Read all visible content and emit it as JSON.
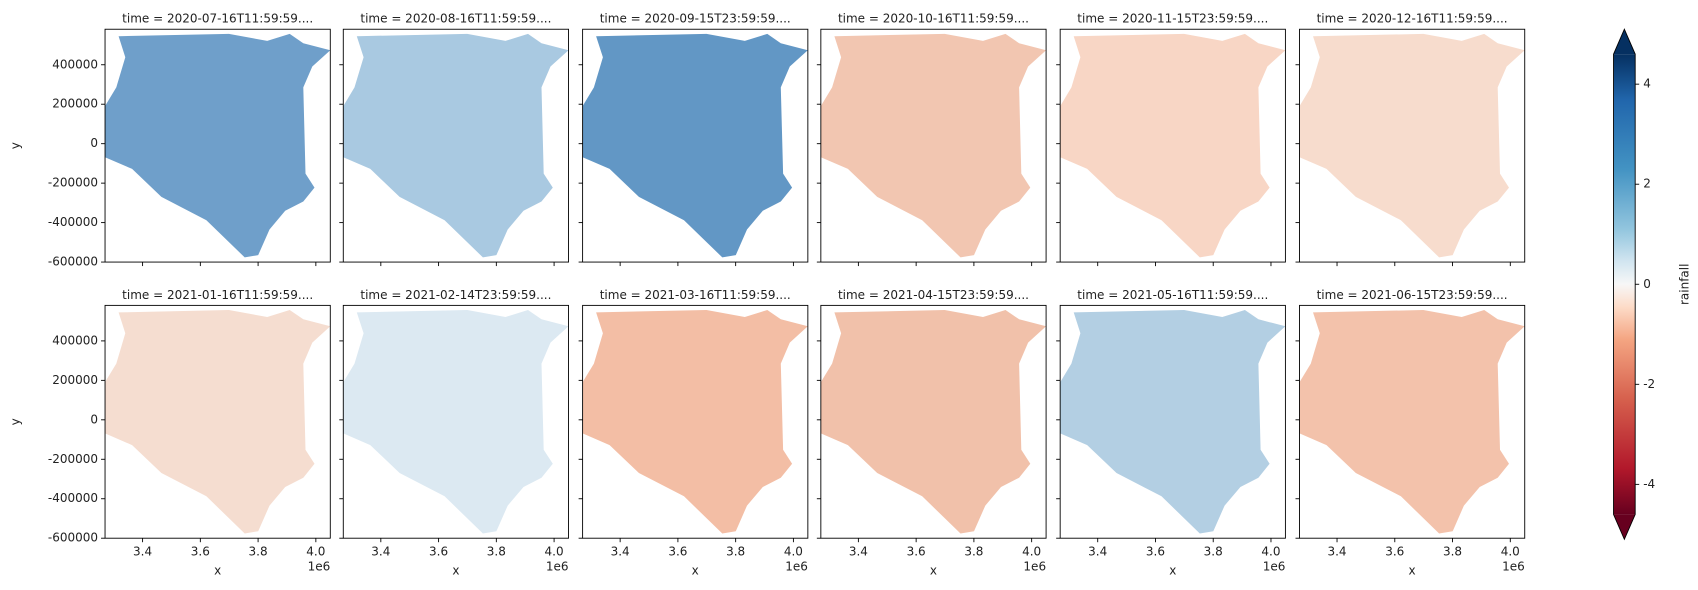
{
  "chart_data": {
    "type": "heatmap",
    "panels": [
      {
        "title": "time = 2020-07-16T11:59:59....",
        "color": "#6f9fca"
      },
      {
        "title": "time = 2020-08-16T11:59:59....",
        "color": "#a9c9e1"
      },
      {
        "title": "time = 2020-09-15T23:59:59....",
        "color": "#6297c5"
      },
      {
        "title": "time = 2020-10-16T11:59:59....",
        "color": "#f2c6b1"
      },
      {
        "title": "time = 2020-11-15T23:59:59....",
        "color": "#f8d6c5"
      },
      {
        "title": "time = 2020-12-16T11:59:59....",
        "color": "#f7dccd"
      },
      {
        "title": "time = 2021-01-16T11:59:59....",
        "color": "#f5ddd0"
      },
      {
        "title": "time = 2021-02-14T23:59:59....",
        "color": "#dce9f2"
      },
      {
        "title": "time = 2021-03-16T11:59:59....",
        "color": "#f3bea5"
      },
      {
        "title": "time = 2021-04-15T23:59:59....",
        "color": "#f1c1aa"
      },
      {
        "title": "time = 2021-05-16T11:59:59....",
        "color": "#b3cfe3"
      },
      {
        "title": "time = 2021-06-15T23:59:59....",
        "color": "#f3c2ab"
      }
    ],
    "columns": 6,
    "xlabel": "x",
    "x_offset_label": "1e6",
    "xlim": [
      3270000,
      4050000
    ],
    "xticks": [
      {
        "value": 3400000,
        "label": "3.4"
      },
      {
        "value": 3600000,
        "label": "3.6"
      },
      {
        "value": 3800000,
        "label": "3.8"
      },
      {
        "value": 4000000,
        "label": "4.0"
      }
    ],
    "ylabel": "y",
    "ylim": [
      -600000,
      580000
    ],
    "yticks": [
      400000,
      200000,
      0,
      -200000,
      -400000,
      -600000
    ],
    "colorbar": {
      "label": "rainfall",
      "lim": [
        -4.6,
        4.6
      ],
      "ticks": [
        4,
        2,
        0,
        -2,
        -4
      ],
      "extend": "both"
    }
  }
}
